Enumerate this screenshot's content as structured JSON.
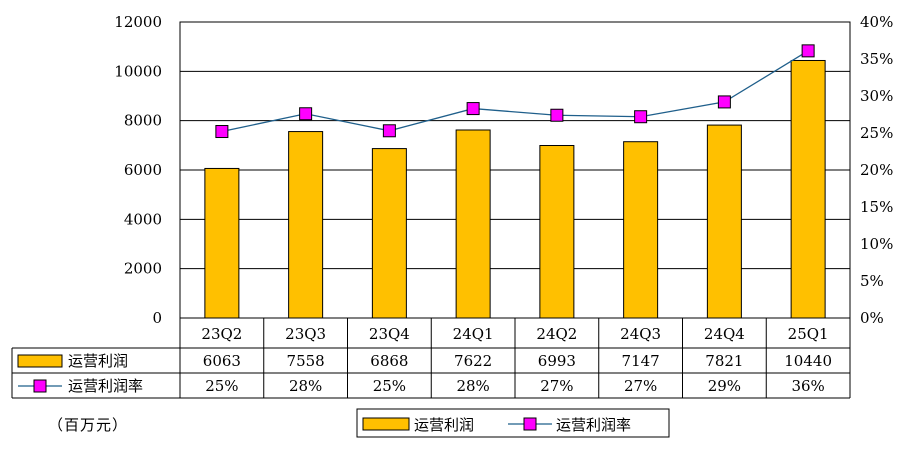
{
  "chart_data": {
    "type": "bar",
    "categories": [
      "23Q2",
      "23Q3",
      "23Q4",
      "24Q1",
      "24Q2",
      "24Q3",
      "24Q4",
      "25Q1"
    ],
    "series": [
      {
        "name": "运营利润",
        "type": "bar",
        "axis": "left",
        "color": "#FFC000",
        "values": [
          6063,
          7558,
          6868,
          7622,
          6993,
          7147,
          7821,
          10440
        ],
        "labels": [
          "6063",
          "7558",
          "6868",
          "7622",
          "6993",
          "7147",
          "7821",
          "10440"
        ]
      },
      {
        "name": "运营利润率",
        "type": "line",
        "axis": "right",
        "color": "#1F5F8B",
        "marker_color": "#FF00FF",
        "values": [
          25.2,
          27.6,
          25.3,
          28.3,
          27.4,
          27.2,
          29.2,
          36.1
        ],
        "labels": [
          "25%",
          "28%",
          "25%",
          "28%",
          "27%",
          "27%",
          "29%",
          "36%"
        ]
      }
    ],
    "y_left": {
      "min": 0,
      "max": 12000,
      "ticks": [
        "0",
        "2000",
        "4000",
        "6000",
        "8000",
        "10000",
        "12000"
      ]
    },
    "y_right": {
      "min": 0,
      "max": 40,
      "ticks": [
        "0%",
        "5%",
        "10%",
        "15%",
        "20%",
        "25%",
        "30%",
        "35%",
        "40%"
      ]
    },
    "grid": true,
    "data_table": true,
    "legend_position": "bottom-center",
    "unit_note": "（百万元）"
  }
}
